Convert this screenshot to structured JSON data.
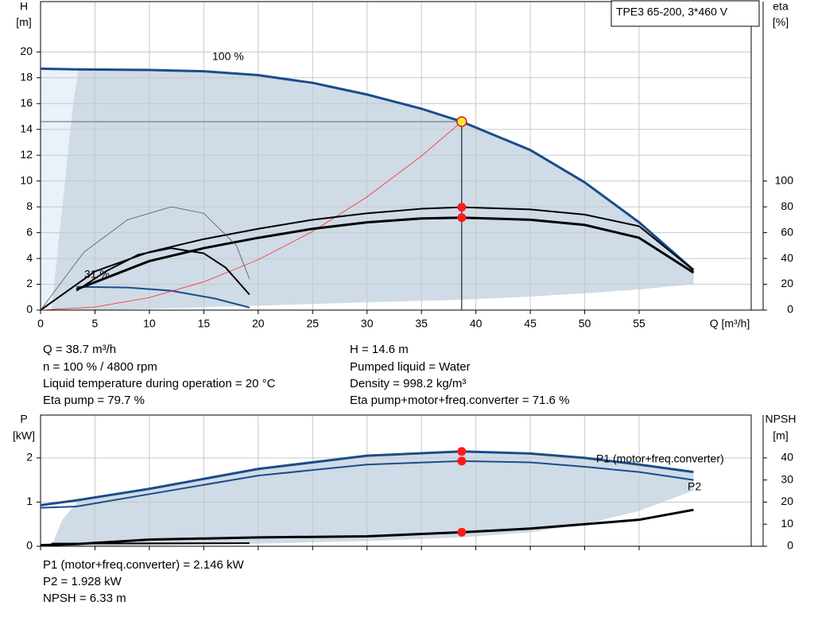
{
  "chart_data": [
    {
      "type": "line",
      "title": "TPE3 65-200, 3*460 V",
      "ylabel": [
        "H",
        "[m]"
      ],
      "y2label": [
        "eta",
        "[%]"
      ],
      "xlabel": "Q [m³/h]",
      "xlim": [
        0,
        65.3
      ],
      "xticks": [
        0,
        5,
        10,
        15,
        20,
        25,
        30,
        35,
        40,
        45,
        50,
        55
      ],
      "xtick_labels": true,
      "ylim": [
        0,
        23.9
      ],
      "yticks": [
        0,
        2,
        4,
        6,
        8,
        10,
        12,
        14,
        16,
        18,
        20
      ],
      "y2lim": [
        0,
        239
      ],
      "y2ticks": [
        0,
        20,
        40,
        60,
        80,
        100
      ],
      "grid": true,
      "annotations": [
        "100 %",
        "31 %"
      ],
      "areas": [
        {
          "color": "#e9f1f9",
          "x": [
            0,
            3.5
          ],
          "upper": [
            18.7,
            18.7
          ],
          "lower": [
            0,
            0
          ]
        },
        {
          "color": "#cfdbe6",
          "x": [
            1,
            2,
            3,
            3.5,
            5,
            10,
            20,
            30,
            38.7,
            45,
            50,
            55,
            60
          ],
          "upper": [
            0,
            8,
            16,
            18.65,
            18.65,
            18.6,
            18.2,
            16.7,
            14.6,
            12.4,
            9.9,
            6.8,
            3.1
          ],
          "lower": [
            0,
            0,
            0,
            0,
            0,
            0.1,
            0.35,
            0.6,
            0.8,
            1.05,
            1.3,
            1.6,
            2.0
          ]
        }
      ],
      "series": [
        {
          "color": "#1a4d8a",
          "style": "thick",
          "x": [
            0,
            3.3,
            10,
            15,
            20,
            25,
            30,
            35,
            38.7,
            45,
            50,
            55,
            60
          ],
          "values": [
            18.7,
            18.65,
            18.6,
            18.5,
            18.2,
            17.6,
            16.7,
            15.6,
            14.6,
            12.4,
            9.9,
            6.8,
            3.1
          ]
        },
        {
          "color": "#1a4d8a",
          "style": "medium",
          "x": [
            3.3,
            8,
            12,
            16,
            19.2
          ],
          "values": [
            1.8,
            1.75,
            1.5,
            0.9,
            0.2
          ]
        },
        {
          "color": "#ff2a2a",
          "style": "thin",
          "x": [
            0,
            5,
            10,
            15,
            20,
            25,
            30,
            35,
            38.7
          ],
          "values": [
            0,
            0.24,
            0.97,
            2.19,
            3.9,
            6.09,
            8.77,
            11.94,
            14.6
          ]
        },
        {
          "color": "#000000",
          "style": "medium",
          "axis": "y2",
          "x": [
            0,
            5,
            10,
            15,
            20,
            25,
            30,
            35,
            38.7,
            45,
            50,
            55,
            60
          ],
          "values": [
            0,
            30,
            45,
            55,
            63,
            70,
            75,
            78.5,
            79.7,
            78,
            74,
            65,
            31
          ]
        },
        {
          "color": "#000000",
          "style": "thick",
          "axis": "y2",
          "x": [
            3.3,
            10,
            15,
            20,
            25,
            30,
            35,
            38.7,
            45,
            50,
            55,
            60
          ],
          "values": [
            16,
            38,
            48,
            56,
            63,
            68,
            71,
            71.6,
            70,
            66,
            56,
            29
          ]
        },
        {
          "color": "#555555",
          "style": "thin",
          "axis": "y2",
          "x": [
            0,
            4,
            8,
            12,
            15,
            18,
            19.2
          ],
          "values": [
            0,
            45,
            70,
            80,
            75,
            50,
            24
          ]
        },
        {
          "color": "#000000",
          "style": "medium",
          "axis": "y2",
          "x": [
            3.3,
            6,
            9,
            12,
            15,
            17,
            19.2
          ],
          "values": [
            15,
            30,
            43,
            48,
            44,
            33,
            12
          ]
        }
      ],
      "markers": [
        {
          "x": 38.7,
          "y": 14.6,
          "color": "#ffe62e",
          "guide": true
        },
        {
          "x": 38.7,
          "y": 79.7,
          "color": "#ff1a1a",
          "axis": "y2"
        },
        {
          "x": 38.7,
          "y": 71.6,
          "color": "#ff1a1a",
          "axis": "y2"
        }
      ],
      "info_left": [
        "Q = 38.7 m³/h",
        "n = 100 % / 4800 rpm",
        "Liquid temperature during operation = 20 °C",
        "Eta pump = 79.7 %"
      ],
      "info_right": [
        "H = 14.6 m",
        "Pumped liquid = Water",
        "Density = 998.2 kg/m³",
        "Eta pump+motor+freq.converter = 71.6 %"
      ]
    },
    {
      "type": "line",
      "ylabel": [
        "P",
        "[kW]"
      ],
      "y2label": [
        "NPSH",
        "[m]"
      ],
      "xlim": [
        0,
        65.3
      ],
      "xticks": [
        0,
        5,
        10,
        15,
        20,
        25,
        30,
        35,
        40,
        45,
        50,
        55
      ],
      "xtick_labels": false,
      "ylim": [
        0,
        2.97
      ],
      "yticks": [
        0,
        1,
        2
      ],
      "y2lim": [
        0,
        59.4
      ],
      "y2ticks": [
        0,
        10,
        20,
        30,
        40
      ],
      "grid": true,
      "areas": [
        {
          "color": "#cfdbe6",
          "x": [
            1,
            2,
            3.5,
            10,
            20,
            30,
            38.7,
            45,
            50,
            55,
            60
          ],
          "upper": [
            0,
            0.6,
            1.04,
            1.3,
            1.75,
            2.05,
            2.146,
            2.1,
            2.0,
            1.85,
            1.68
          ],
          "lower": [
            0,
            0,
            0,
            0.02,
            0.06,
            0.12,
            0.2,
            0.32,
            0.5,
            0.8,
            1.26
          ]
        }
      ],
      "series": [
        {
          "name": "P1 (motor+freq.converter)",
          "color": "#1a4d8a",
          "style": "thick",
          "x": [
            0,
            3.3,
            10,
            20,
            30,
            38.7,
            45,
            50,
            55,
            60
          ],
          "values": [
            0.93,
            1.04,
            1.3,
            1.75,
            2.05,
            2.146,
            2.1,
            2.0,
            1.85,
            1.68
          ]
        },
        {
          "name": "P2",
          "color": "#1a4d8a",
          "style": "medium",
          "x": [
            0,
            3.3,
            10,
            20,
            30,
            38.7,
            45,
            50,
            55,
            60
          ],
          "values": [
            0.87,
            0.9,
            1.18,
            1.6,
            1.85,
            1.928,
            1.9,
            1.8,
            1.68,
            1.5
          ]
        },
        {
          "color": "#000000",
          "style": "thick",
          "axis": "y2",
          "x": [
            0,
            3.3,
            10,
            20,
            30,
            38.7,
            45,
            50,
            55,
            60
          ],
          "values": [
            0.5,
            1,
            3,
            4,
            4.5,
            6.33,
            8,
            10,
            12,
            16.5
          ]
        },
        {
          "color": "#000000",
          "style": "medium",
          "x": [
            1,
            19.2
          ],
          "values": [
            0.06,
            0.07
          ]
        }
      ],
      "markers": [
        {
          "x": 38.7,
          "y": 2.146,
          "color": "#ff1a1a"
        },
        {
          "x": 38.7,
          "y": 1.928,
          "color": "#ff1a1a"
        },
        {
          "x": 38.7,
          "y": 6.33,
          "color": "#ff1a1a",
          "axis": "y2"
        }
      ],
      "info_left": [
        "P1 (motor+freq.converter) = 2.146 kW",
        "P2 = 1.928 kW",
        "NPSH = 6.33 m"
      ]
    }
  ]
}
